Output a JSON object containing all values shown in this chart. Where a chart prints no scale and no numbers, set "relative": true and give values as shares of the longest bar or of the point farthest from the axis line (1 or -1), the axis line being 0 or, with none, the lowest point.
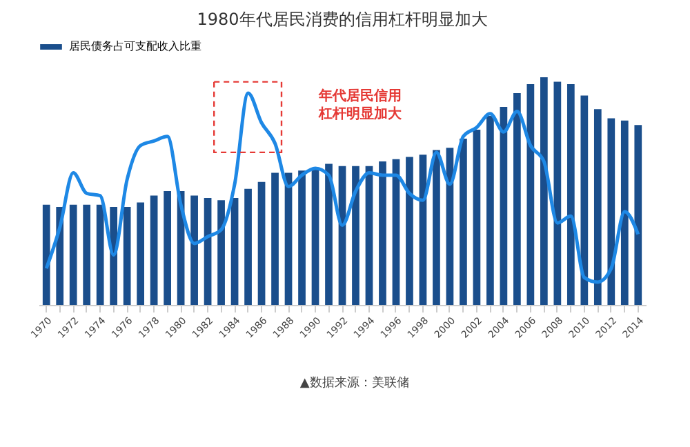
{
  "chart_data": {
    "type": "bar",
    "title": "1980年代居民消费的信用杠杆明显加大",
    "relative": true,
    "legend": "top",
    "grid": false,
    "categories": [
      "1970",
      null,
      "1972",
      null,
      "1974",
      null,
      "1976",
      null,
      "1978",
      null,
      "1980",
      null,
      "1982",
      null,
      "1984",
      null,
      "1986",
      null,
      "1988",
      null,
      "1990",
      null,
      "1992",
      null,
      "1994",
      null,
      "1996",
      null,
      "1998",
      null,
      "2000",
      null,
      "2002",
      null,
      "2004",
      null,
      "2006",
      null,
      "2008",
      null,
      "2010",
      null,
      "2012",
      null,
      "2014"
    ],
    "series": [
      {
        "name": "居民债务占可支配收入比重",
        "color": "#1a4e8c",
        "values": [
          0.44,
          0.43,
          0.44,
          0.44,
          0.44,
          0.43,
          0.43,
          0.45,
          0.48,
          0.5,
          0.5,
          0.48,
          0.47,
          0.46,
          0.47,
          0.51,
          0.54,
          0.58,
          0.58,
          0.59,
          0.6,
          0.62,
          0.61,
          0.61,
          0.61,
          0.63,
          0.64,
          0.65,
          0.66,
          0.68,
          0.69,
          0.73,
          0.77,
          0.83,
          0.87,
          0.93,
          0.97,
          1.0,
          0.98,
          0.97,
          0.92,
          0.86,
          0.82,
          0.81,
          0.79
        ]
      },
      {
        "type": "line",
        "color": "#1e88e5",
        "values": [
          0.16,
          0.34,
          0.58,
          0.49,
          0.48,
          0.22,
          0.55,
          0.7,
          0.72,
          0.74,
          0.44,
          0.27,
          0.3,
          0.33,
          0.53,
          0.93,
          0.8,
          0.71,
          0.52,
          0.57,
          0.6,
          0.57,
          0.35,
          0.5,
          0.58,
          0.57,
          0.57,
          0.49,
          0.46,
          0.67,
          0.53,
          0.74,
          0.78,
          0.84,
          0.76,
          0.85,
          0.7,
          0.63,
          0.36,
          0.39,
          0.12,
          0.1,
          0.16,
          0.41,
          0.31
        ]
      }
    ],
    "annotations": [
      "年代居民信用杠杆明显加大",
      "▲数据来源：美联储"
    ]
  }
}
